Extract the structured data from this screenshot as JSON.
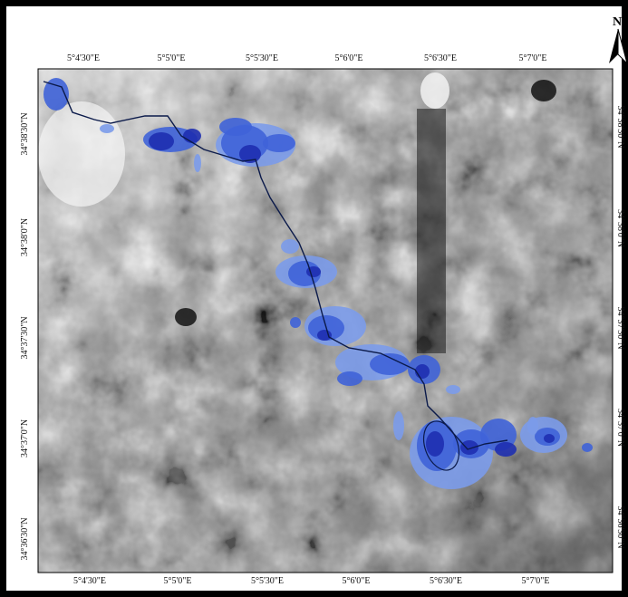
{
  "map": {
    "north_label": "N",
    "top_lon_labels": [
      "5°4'30\"E",
      "5°5'0\"E",
      "5°5'30\"E",
      "5°6'0\"E",
      "5°6'30\"E",
      "5°7'0\"E"
    ],
    "bottom_lon_labels": [
      "5°4'30\"E",
      "5°5'0\"E",
      "5°5'30\"E",
      "5°6'0\"E",
      "5°6'30\"E",
      "5°7'0\"E"
    ],
    "left_lat_labels": [
      "34°38'30\"N",
      "34°38'0\"N",
      "34°37'30\"N",
      "34°37'0\"N",
      "34°36'30\"N"
    ],
    "right_lat_labels": [
      "34°38'30\"N",
      "34°38'0\"N",
      "34°37'30\"N",
      "34°37'0\"N",
      "34°36'30\"N"
    ],
    "colors": {
      "frame": "#000000",
      "flood_dark": "#1e2fb0",
      "flood_mid": "#3f63d8",
      "flood_light": "#7b9bea",
      "stream_line": "#0b1a4a"
    }
  }
}
